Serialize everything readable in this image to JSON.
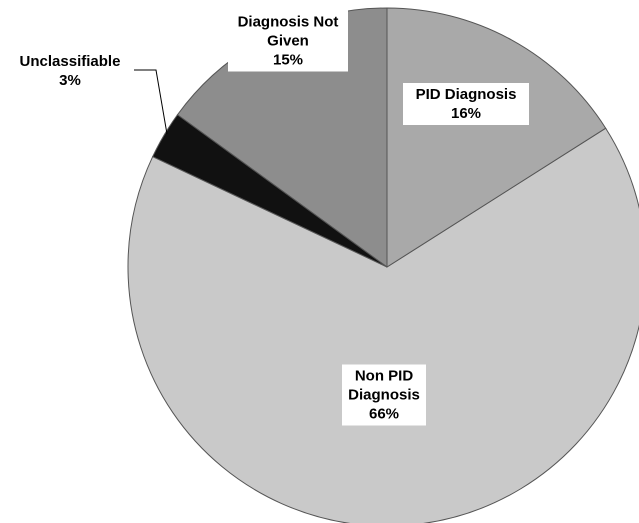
{
  "chart_data": {
    "type": "pie",
    "categories": [
      "PID Diagnosis",
      "Non PID Diagnosis",
      "Unclassifiable",
      "Diagnosis Not Given"
    ],
    "values": [
      16,
      66,
      3,
      15
    ],
    "value_labels": [
      "16%",
      "66%",
      "3%",
      "15%"
    ],
    "colors": [
      "#a9a9a9",
      "#c9c9c9",
      "#111111",
      "#8d8d8d"
    ]
  }
}
